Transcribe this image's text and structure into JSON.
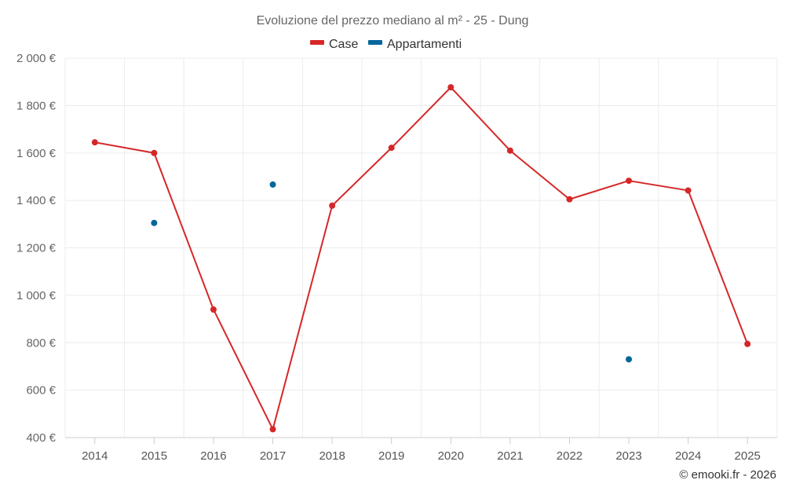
{
  "chart_data": {
    "type": "line",
    "title": "Evoluzione del prezzo mediano al m² - 25 - Dung",
    "categories": [
      "2014",
      "2015",
      "2016",
      "2017",
      "2018",
      "2019",
      "2020",
      "2021",
      "2022",
      "2023",
      "2024",
      "2025"
    ],
    "ylim": [
      400,
      2000
    ],
    "yticks": [
      400,
      600,
      800,
      1000,
      1200,
      1400,
      1600,
      1800,
      2000
    ],
    "ytick_labels": [
      "400 €",
      "600 €",
      "800 €",
      "1 000 €",
      "1 200 €",
      "1 400 €",
      "1 600 €",
      "1 800 €",
      "2 000 €"
    ],
    "grid": true,
    "legend_position": "top-center",
    "series": [
      {
        "name": "Case",
        "color": "#d62728",
        "line": true,
        "values": [
          1645,
          1600,
          940,
          435,
          1378,
          1622,
          1877,
          1610,
          1405,
          1483,
          1442,
          795
        ]
      },
      {
        "name": "Appartamenti",
        "color": "#04679c",
        "line": false,
        "values": [
          null,
          1305,
          null,
          1467,
          null,
          null,
          null,
          null,
          null,
          730,
          null,
          null
        ]
      }
    ],
    "credit": "© emooki.fr - 2026"
  }
}
